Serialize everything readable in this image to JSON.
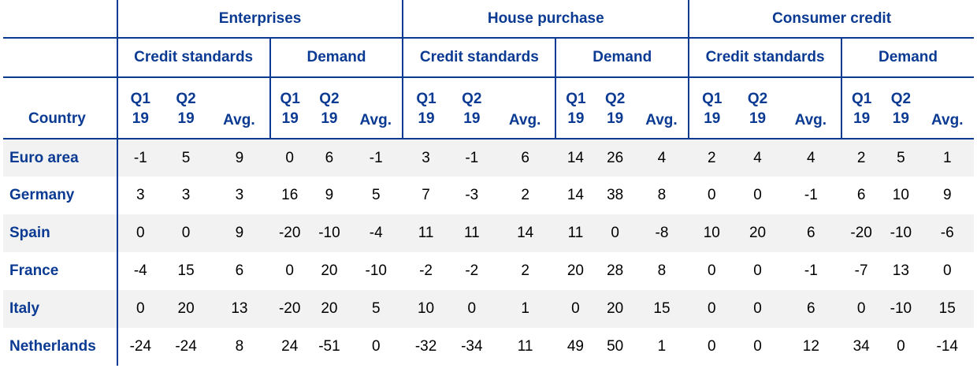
{
  "groups": [
    {
      "label": "Enterprises",
      "subgroups": [
        "Credit standards",
        "Demand"
      ]
    },
    {
      "label": "House purchase",
      "subgroups": [
        "Credit standards",
        "Demand"
      ]
    },
    {
      "label": "Consumer credit",
      "subgroups": [
        "Credit standards",
        "Demand"
      ]
    }
  ],
  "period_labels": [
    "Q1\n19",
    "Q2\n19",
    "Avg."
  ],
  "country_header": "Country",
  "rows": [
    {
      "country": "Euro area",
      "values": [
        "-1",
        "5",
        "9",
        "0",
        "6",
        "-1",
        "3",
        "-1",
        "6",
        "14",
        "26",
        "4",
        "2",
        "4",
        "4",
        "2",
        "5",
        "1"
      ]
    },
    {
      "country": "Germany",
      "values": [
        "3",
        "3",
        "3",
        "16",
        "9",
        "5",
        "7",
        "-3",
        "2",
        "14",
        "38",
        "8",
        "0",
        "0",
        "-1",
        "6",
        "10",
        "9"
      ]
    },
    {
      "country": "Spain",
      "values": [
        "0",
        "0",
        "9",
        "-20",
        "-10",
        "-4",
        "11",
        "11",
        "14",
        "11",
        "0",
        "-8",
        "10",
        "20",
        "6",
        "-20",
        "-10",
        "-6"
      ]
    },
    {
      "country": "France",
      "values": [
        "-4",
        "15",
        "6",
        "0",
        "20",
        "-10",
        "-2",
        "-2",
        "2",
        "20",
        "28",
        "8",
        "0",
        "0",
        "-1",
        "-7",
        "13",
        "0"
      ]
    },
    {
      "country": "Italy",
      "values": [
        "0",
        "20",
        "13",
        "-20",
        "20",
        "5",
        "10",
        "0",
        "1",
        "0",
        "20",
        "15",
        "0",
        "0",
        "6",
        "0",
        "-10",
        "15"
      ]
    },
    {
      "country": "Netherlands",
      "values": [
        "-24",
        "-24",
        "8",
        "24",
        "-51",
        "0",
        "-32",
        "-34",
        "11",
        "49",
        "50",
        "1",
        "0",
        "0",
        "12",
        "34",
        "0",
        "-14"
      ]
    }
  ]
}
